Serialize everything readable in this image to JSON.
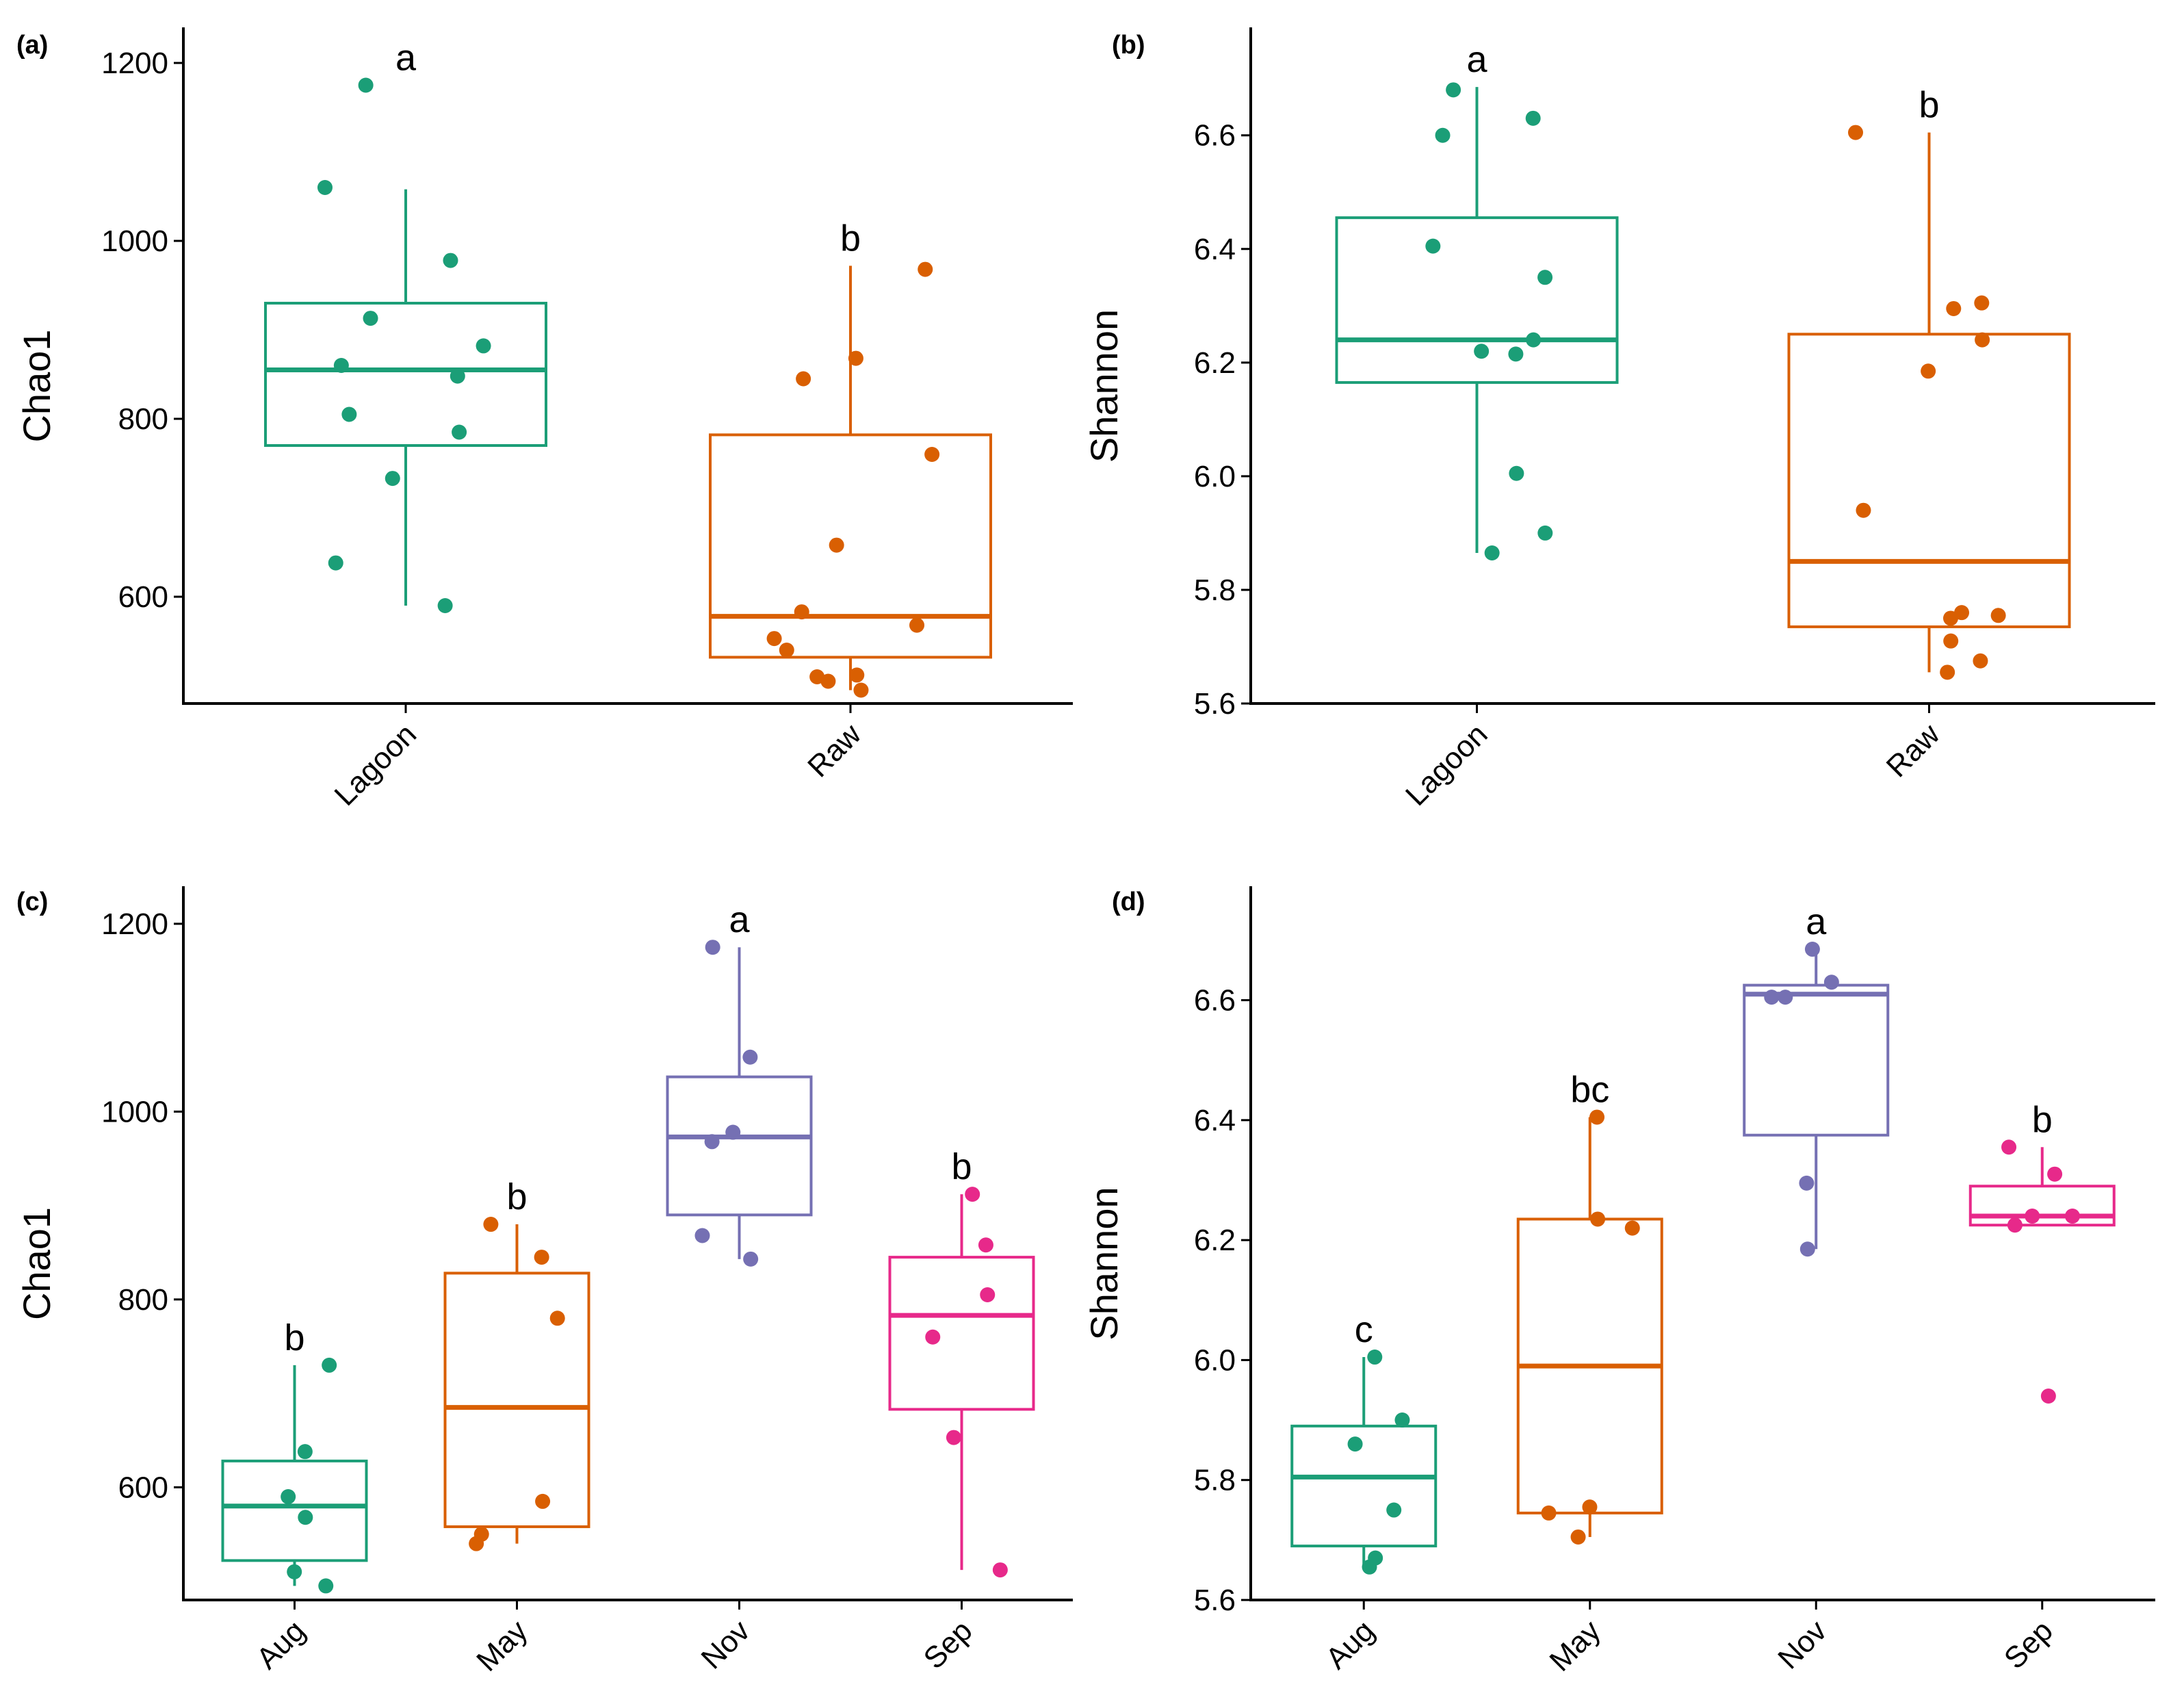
{
  "colors": {
    "Lagoon": "#1b9e77",
    "Raw": "#d95f02",
    "Aug": "#1b9e77",
    "May": "#d95f02",
    "Nov": "#7570b3",
    "Sep": "#e7298a"
  },
  "chart_data": [
    {
      "type": "box",
      "panel": "(a)",
      "title": "",
      "xlabel": "",
      "ylabel": "Chao1",
      "categories": [
        "Lagoon",
        "Raw"
      ],
      "ylim": [
        480,
        1240
      ],
      "yticks": [
        600,
        800,
        1000,
        1200
      ],
      "boxes": [
        {
          "category": "Lagoon",
          "q1": 770,
          "median": 855,
          "q3": 930,
          "whisker_low": 590,
          "whisker_high": 1058,
          "label": "a",
          "points": [
            590,
            638,
            733,
            785,
            805,
            848,
            860,
            882,
            913,
            978,
            1060,
            1175
          ]
        },
        {
          "category": "Raw",
          "q1": 532,
          "median": 578,
          "q3": 782,
          "whisker_low": 495,
          "whisker_high": 972,
          "label": "b",
          "points": [
            495,
            505,
            510,
            512,
            540,
            553,
            568,
            583,
            658,
            760,
            845,
            868,
            968
          ]
        }
      ]
    },
    {
      "type": "box",
      "panel": "(b)",
      "title": "",
      "xlabel": "",
      "ylabel": "Shannon",
      "categories": [
        "Lagoon",
        "Raw"
      ],
      "ylim": [
        5.6,
        6.79
      ],
      "yticks": [
        5.6,
        5.8,
        6.0,
        6.2,
        6.4,
        6.6
      ],
      "boxes": [
        {
          "category": "Lagoon",
          "q1": 6.165,
          "median": 6.24,
          "q3": 6.455,
          "whisker_low": 5.865,
          "whisker_high": 6.685,
          "label": "a",
          "points": [
            5.865,
            5.9,
            6.005,
            6.215,
            6.22,
            6.24,
            6.35,
            6.405,
            6.6,
            6.63,
            6.68
          ]
        },
        {
          "category": "Raw",
          "q1": 5.735,
          "median": 5.85,
          "q3": 6.25,
          "whisker_low": 5.655,
          "whisker_high": 6.605,
          "label": "b",
          "points": [
            5.655,
            5.675,
            5.71,
            5.75,
            5.755,
            5.76,
            5.94,
            6.185,
            6.24,
            6.295,
            6.305,
            6.605
          ]
        }
      ]
    },
    {
      "type": "box",
      "panel": "(c)",
      "title": "",
      "xlabel": "",
      "ylabel": "Chao1",
      "categories": [
        "Aug",
        "May",
        "Nov",
        "Sep"
      ],
      "ylim": [
        480,
        1240
      ],
      "yticks": [
        600,
        800,
        1000,
        1200
      ],
      "boxes": [
        {
          "category": "Aug",
          "q1": 522,
          "median": 580,
          "q3": 628,
          "whisker_low": 495,
          "whisker_high": 730,
          "label": "b",
          "points": [
            495,
            510,
            568,
            590,
            638,
            730
          ]
        },
        {
          "category": "May",
          "q1": 558,
          "median": 685,
          "q3": 828,
          "whisker_low": 540,
          "whisker_high": 880,
          "label": "b",
          "points": [
            540,
            550,
            585,
            780,
            845,
            880
          ]
        },
        {
          "category": "Nov",
          "q1": 890,
          "median": 973,
          "q3": 1037,
          "whisker_low": 843,
          "whisker_high": 1175,
          "label": "a",
          "points": [
            843,
            868,
            968,
            978,
            1058,
            1175
          ]
        },
        {
          "category": "Sep",
          "q1": 683,
          "median": 783,
          "q3": 845,
          "whisker_low": 512,
          "whisker_high": 912,
          "label": "b",
          "points": [
            512,
            653,
            760,
            805,
            858,
            912
          ]
        }
      ]
    },
    {
      "type": "box",
      "panel": "(d)",
      "title": "",
      "xlabel": "",
      "ylabel": "Shannon",
      "categories": [
        "Aug",
        "May",
        "Nov",
        "Sep"
      ],
      "ylim": [
        5.6,
        6.79
      ],
      "yticks": [
        5.6,
        5.8,
        6.0,
        6.2,
        6.4,
        6.6
      ],
      "boxes": [
        {
          "category": "Aug",
          "q1": 5.69,
          "median": 5.805,
          "q3": 5.89,
          "whisker_low": 5.655,
          "whisker_high": 6.005,
          "label": "c",
          "points": [
            5.655,
            5.67,
            5.75,
            5.86,
            5.9,
            6.005
          ]
        },
        {
          "category": "May",
          "q1": 5.745,
          "median": 5.99,
          "q3": 6.235,
          "whisker_low": 5.705,
          "whisker_high": 6.405,
          "label": "bc",
          "points": [
            5.705,
            5.745,
            5.755,
            6.22,
            6.235,
            6.405
          ]
        },
        {
          "category": "Nov",
          "q1": 6.375,
          "median": 6.61,
          "q3": 6.625,
          "whisker_low": 6.185,
          "whisker_high": 6.685,
          "label": "a",
          "points": [
            6.185,
            6.295,
            6.605,
            6.605,
            6.63,
            6.685
          ]
        },
        {
          "category": "Sep",
          "q1": 6.225,
          "median": 6.24,
          "q3": 6.29,
          "whisker_low": 6.225,
          "whisker_high": 6.355,
          "label": "b",
          "points": [
            5.94,
            6.225,
            6.24,
            6.24,
            6.31,
            6.355
          ]
        }
      ]
    }
  ]
}
